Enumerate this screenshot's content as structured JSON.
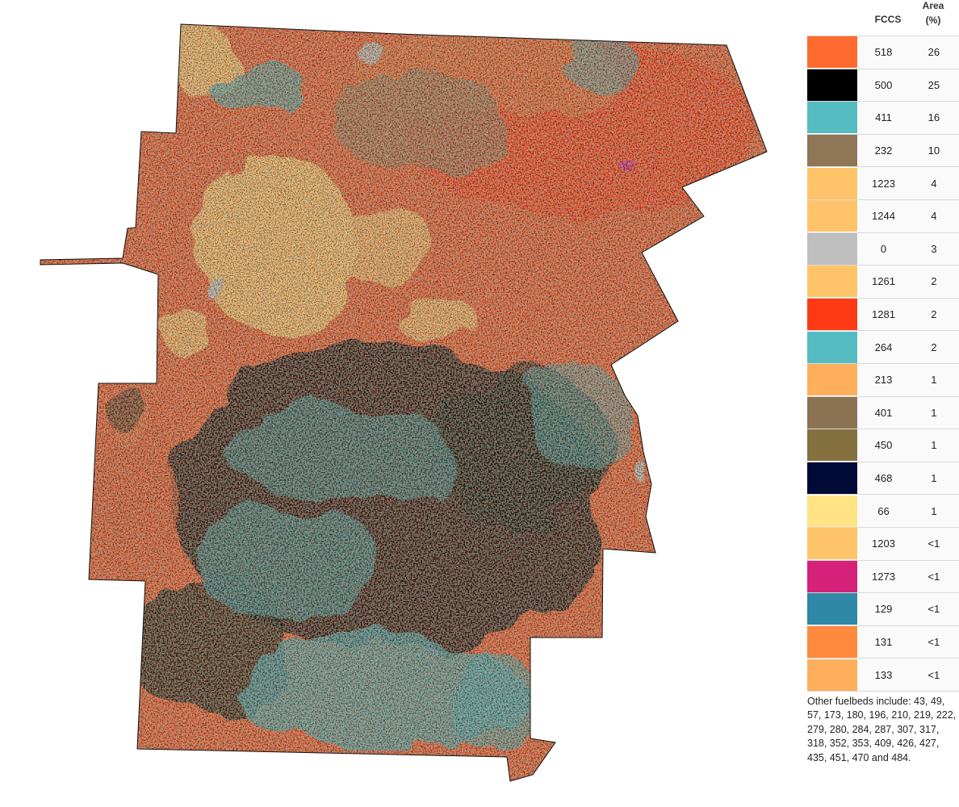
{
  "legend": {
    "header_fccs": "FCCS",
    "header_area_line1": "Area",
    "header_area_line2": "(%)",
    "items": [
      {
        "fccs": "518",
        "area": "26",
        "color": "#ff6a2e"
      },
      {
        "fccs": "500",
        "area": "25",
        "color": "#000000"
      },
      {
        "fccs": "411",
        "area": "16",
        "color": "#55bcc2"
      },
      {
        "fccs": "232",
        "area": "10",
        "color": "#8f7656"
      },
      {
        "fccs": "1223",
        "area": "4",
        "color": "#ffc469"
      },
      {
        "fccs": "1244",
        "area": "4",
        "color": "#ffc469"
      },
      {
        "fccs": "0",
        "area": "3",
        "color": "#bfbfbf"
      },
      {
        "fccs": "1261",
        "area": "2",
        "color": "#ffc469"
      },
      {
        "fccs": "1281",
        "area": "2",
        "color": "#ff3a14"
      },
      {
        "fccs": "264",
        "area": "2",
        "color": "#55bcc2"
      },
      {
        "fccs": "213",
        "area": "1",
        "color": "#ffae5c"
      },
      {
        "fccs": "401",
        "area": "1",
        "color": "#8a7252"
      },
      {
        "fccs": "450",
        "area": "1",
        "color": "#857040"
      },
      {
        "fccs": "468",
        "area": "1",
        "color": "#000a36"
      },
      {
        "fccs": "66",
        "area": "1",
        "color": "#ffe385"
      },
      {
        "fccs": "1203",
        "area": "<1",
        "color": "#ffc469"
      },
      {
        "fccs": "1273",
        "area": "<1",
        "color": "#d6217a"
      },
      {
        "fccs": "129",
        "area": "<1",
        "color": "#2e88a6"
      },
      {
        "fccs": "131",
        "area": "<1",
        "color": "#ff8a3d"
      },
      {
        "fccs": "133",
        "area": "<1",
        "color": "#ffae5c"
      }
    ],
    "note": "Other fuelbeds include: 43, 49, 57, 173, 180, 196, 210, 219, 222, 279, 280, 284, 287, 307, 317, 318, 352, 353, 409, 426, 427, 435, 451, 470 and 484."
  }
}
